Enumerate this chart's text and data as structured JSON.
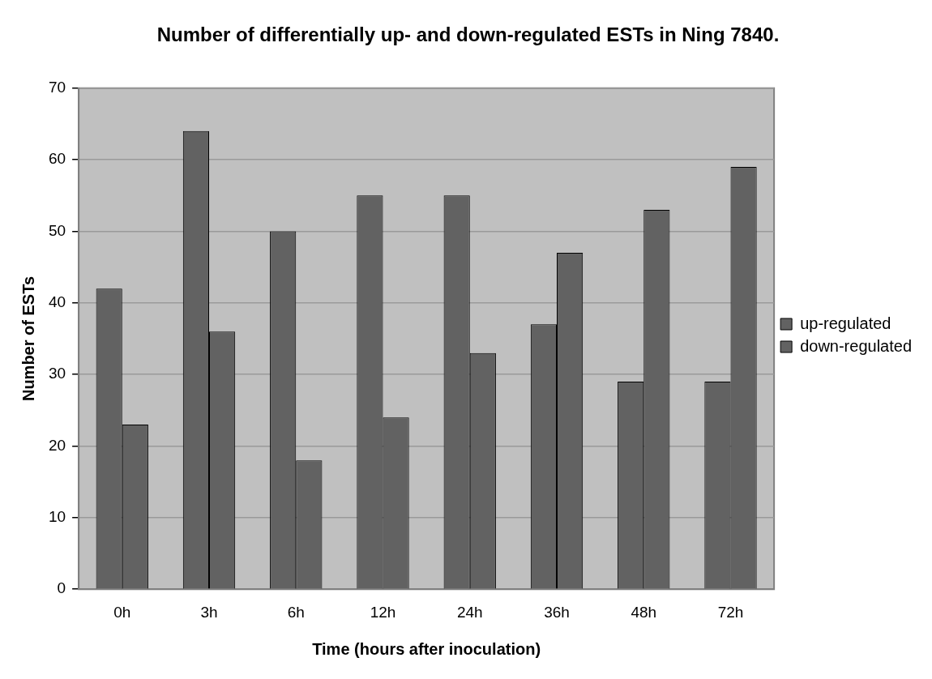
{
  "chart_data": {
    "type": "bar",
    "title": "Number of differentially up- and down-regulated ESTs in Ning 7840.",
    "xlabel": "Time (hours after inoculation)",
    "ylabel": "Number of ESTs",
    "categories": [
      "0h",
      "3h",
      "6h",
      "12h",
      "24h",
      "36h",
      "48h",
      "72h"
    ],
    "series": [
      {
        "name": "up-regulated",
        "color": "#626262",
        "values": [
          42,
          64,
          50,
          55,
          55,
          37,
          29,
          29
        ]
      },
      {
        "name": "down-regulated",
        "color": "#626262",
        "values": [
          23,
          36,
          18,
          24,
          33,
          47,
          53,
          59
        ]
      }
    ],
    "ylim": [
      0,
      70
    ],
    "yticks": [
      0,
      10,
      20,
      30,
      40,
      50,
      60,
      70
    ],
    "grid": "y",
    "legend": "right"
  }
}
